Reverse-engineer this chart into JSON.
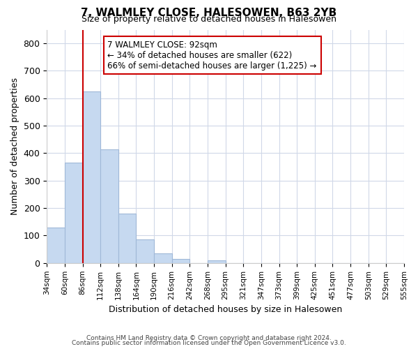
{
  "title1": "7, WALMLEY CLOSE, HALESOWEN, B63 2YB",
  "title2": "Size of property relative to detached houses in Halesowen",
  "xlabel": "Distribution of detached houses by size in Halesowen",
  "ylabel": "Number of detached properties",
  "bar_color": "#c6d9f0",
  "bar_edge_color": "#a0b8d8",
  "bins": [
    "34sqm",
    "60sqm",
    "86sqm",
    "112sqm",
    "138sqm",
    "164sqm",
    "190sqm",
    "216sqm",
    "242sqm",
    "268sqm",
    "295sqm",
    "321sqm",
    "347sqm",
    "373sqm",
    "399sqm",
    "425sqm",
    "451sqm",
    "477sqm",
    "503sqm",
    "529sqm",
    "555sqm"
  ],
  "values": [
    130,
    365,
    625,
    415,
    180,
    85,
    35,
    15,
    0,
    10,
    0,
    0,
    0,
    0,
    0,
    0,
    0,
    0,
    0,
    0
  ],
  "ylim": [
    0,
    850
  ],
  "yticks": [
    0,
    100,
    200,
    300,
    400,
    500,
    600,
    700,
    800
  ],
  "vline_index": 2,
  "vline_color": "#cc0000",
  "annotation_title": "7 WALMLEY CLOSE: 92sqm",
  "annotation_line1": "← 34% of detached houses are smaller (622)",
  "annotation_line2": "66% of semi-detached houses are larger (1,225) →",
  "annotation_box_color": "#ffffff",
  "annotation_box_edge": "#cc0000",
  "footer1": "Contains HM Land Registry data © Crown copyright and database right 2024.",
  "footer2": "Contains public sector information licensed under the Open Government Licence v3.0.",
  "background_color": "#ffffff",
  "grid_color": "#d0d8e8"
}
